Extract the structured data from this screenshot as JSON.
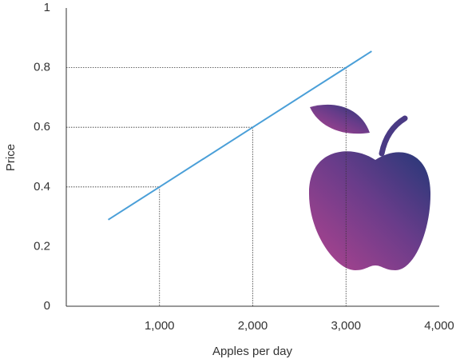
{
  "chart_data": {
    "type": "line",
    "x_label": "Apples per day",
    "y_label": "Price",
    "x": [
      450,
      1000,
      2000,
      3000,
      3275
    ],
    "series": [
      {
        "name": "Price",
        "color": "#4a9fd8",
        "values": [
          0.29,
          0.4,
          0.6,
          0.8,
          0.855
        ]
      }
    ],
    "xlim": [
      0,
      4000
    ],
    "xticks": [
      {
        "value": 1000,
        "label": "1,000"
      },
      {
        "value": 2000,
        "label": "2,000"
      },
      {
        "value": 3000,
        "label": "3,000"
      },
      {
        "value": 4000,
        "label": "4,000"
      }
    ],
    "ylim": [
      0,
      1
    ],
    "yticks": [
      0,
      0.2,
      0.4,
      0.6,
      0.8,
      1
    ],
    "guides": true
  }
}
